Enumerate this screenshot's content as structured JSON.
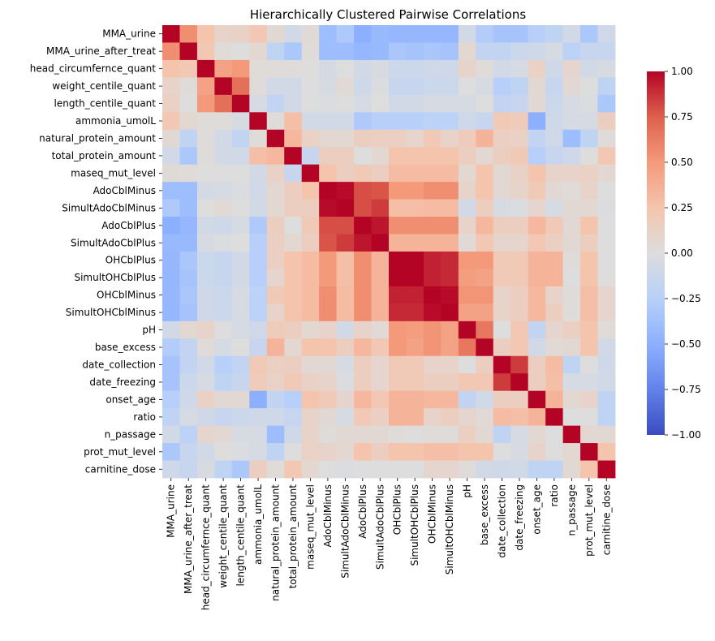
{
  "chart_data": {
    "type": "heatmap",
    "title": "Hierarchically Clustered Pairwise Correlations",
    "xlabel": "",
    "ylabel": "",
    "colormap": "coolwarm",
    "vmin": -1.0,
    "vmax": 1.0,
    "colorbar": {
      "placement": "right",
      "ticks": [
        1.0,
        0.75,
        0.5,
        0.25,
        0.0,
        -0.25,
        -0.5,
        -0.75,
        -1.0
      ],
      "tick_labels": [
        "1.00",
        "0.75",
        "0.50",
        "0.25",
        "0.00",
        "−0.25",
        "−0.50",
        "−0.75",
        "−1.00"
      ]
    },
    "labels": [
      "MMA_urine",
      "MMA_urine_after_treat",
      "head_circumfernce_quant",
      "weight_centile_quant",
      "length_centile_quant",
      "ammonia_umolL",
      "natural_protein_amount",
      "total_protein_amount",
      "maseq_mut_level",
      "AdoCblMinus",
      "SimultAdoCblMinus",
      "AdoCblPlus",
      "SimultAdoCblPlus",
      "OHCblPlus",
      "SimultOHCblPlus",
      "OHCblMinus",
      "SimultOHCblMinus",
      "pH",
      "base_excess",
      "date_collection",
      "date_freezing",
      "onset_age",
      "ratio",
      "n_passage",
      "prot_mut_level",
      "carnitine_dose"
    ],
    "matrix": [
      [
        1.0,
        0.55,
        0.25,
        0.1,
        0.12,
        0.22,
        0.05,
        -0.08,
        0.03,
        -0.4,
        -0.3,
        -0.5,
        -0.43,
        -0.45,
        -0.45,
        -0.45,
        -0.45,
        -0.08,
        -0.28,
        -0.35,
        -0.35,
        -0.25,
        -0.2,
        -0.08,
        -0.32,
        -0.1
      ],
      [
        0.55,
        1.0,
        0.22,
        0.02,
        0.0,
        0.06,
        -0.2,
        -0.32,
        0.02,
        -0.4,
        -0.4,
        -0.45,
        -0.43,
        -0.33,
        -0.35,
        -0.33,
        -0.35,
        0.06,
        -0.18,
        -0.18,
        -0.12,
        -0.1,
        -0.05,
        -0.22,
        -0.15,
        -0.15
      ],
      [
        0.25,
        0.22,
        1.0,
        0.45,
        0.5,
        0.02,
        0.02,
        0.02,
        0.0,
        -0.06,
        0.0,
        -0.08,
        -0.04,
        -0.12,
        -0.12,
        -0.1,
        -0.1,
        0.1,
        0.02,
        -0.08,
        -0.05,
        0.12,
        -0.1,
        0.08,
        -0.08,
        -0.04
      ],
      [
        0.1,
        0.02,
        0.45,
        1.0,
        0.68,
        0.02,
        -0.08,
        -0.08,
        0.0,
        -0.05,
        0.04,
        -0.1,
        -0.02,
        -0.15,
        -0.15,
        -0.12,
        -0.12,
        0.0,
        -0.05,
        -0.25,
        -0.2,
        0.05,
        -0.15,
        0.05,
        0.0,
        -0.2
      ],
      [
        0.12,
        0.0,
        0.5,
        0.68,
        1.0,
        -0.05,
        -0.18,
        -0.08,
        0.0,
        -0.02,
        0.0,
        -0.05,
        0.0,
        -0.08,
        -0.08,
        -0.05,
        -0.05,
        -0.05,
        0.0,
        -0.18,
        -0.15,
        0.05,
        -0.12,
        -0.05,
        -0.02,
        -0.32
      ],
      [
        0.22,
        0.06,
        0.02,
        0.02,
        -0.05,
        1.0,
        0.02,
        0.28,
        -0.08,
        -0.08,
        -0.08,
        -0.3,
        -0.25,
        -0.25,
        -0.25,
        -0.22,
        -0.22,
        -0.1,
        -0.15,
        0.2,
        0.18,
        -0.5,
        -0.1,
        -0.05,
        -0.05,
        0.15
      ],
      [
        0.05,
        -0.2,
        0.02,
        -0.08,
        -0.18,
        0.02,
        1.0,
        0.32,
        0.12,
        0.06,
        0.06,
        0.15,
        0.14,
        0.14,
        0.08,
        0.2,
        0.1,
        0.18,
        0.35,
        0.14,
        0.12,
        -0.18,
        -0.1,
        -0.4,
        -0.2,
        0.02
      ],
      [
        -0.08,
        -0.32,
        0.02,
        -0.08,
        -0.08,
        0.28,
        0.32,
        1.0,
        -0.15,
        0.15,
        0.15,
        0.0,
        0.06,
        0.25,
        0.25,
        0.25,
        0.25,
        0.15,
        0.06,
        0.15,
        0.2,
        -0.25,
        -0.15,
        -0.1,
        0.0,
        0.22
      ],
      [
        0.03,
        0.02,
        0.0,
        0.0,
        0.0,
        -0.08,
        0.12,
        -0.15,
        1.0,
        0.25,
        0.15,
        0.2,
        0.15,
        0.3,
        0.3,
        0.3,
        0.3,
        0.06,
        0.25,
        0.05,
        0.12,
        0.25,
        0.1,
        0.1,
        0.12,
        0.06
      ],
      [
        -0.4,
        -0.4,
        -0.06,
        -0.05,
        -0.02,
        -0.08,
        0.06,
        0.15,
        0.25,
        1.0,
        0.98,
        0.8,
        0.78,
        0.5,
        0.5,
        0.55,
        0.55,
        0.1,
        0.25,
        0.05,
        0.1,
        0.2,
        0.05,
        0.02,
        0.1,
        0.0
      ],
      [
        -0.3,
        -0.4,
        0.0,
        0.04,
        0.0,
        -0.08,
        0.06,
        0.15,
        0.15,
        0.98,
        1.0,
        0.8,
        0.85,
        0.28,
        0.28,
        0.3,
        0.3,
        -0.08,
        0.15,
        -0.05,
        -0.02,
        0.08,
        -0.05,
        0.05,
        0.06,
        -0.02
      ],
      [
        -0.5,
        -0.45,
        -0.08,
        -0.1,
        -0.05,
        -0.3,
        0.15,
        0.0,
        0.2,
        0.8,
        0.8,
        1.0,
        0.95,
        0.55,
        0.55,
        0.55,
        0.55,
        0.1,
        0.32,
        0.15,
        0.15,
        0.32,
        0.2,
        0.05,
        0.25,
        0.0
      ],
      [
        -0.43,
        -0.43,
        -0.04,
        -0.02,
        0.0,
        -0.25,
        0.14,
        0.06,
        0.15,
        0.78,
        0.85,
        0.95,
        1.0,
        0.35,
        0.35,
        0.35,
        0.35,
        0.04,
        0.22,
        0.08,
        0.08,
        0.22,
        0.14,
        0.05,
        0.15,
        0.0
      ],
      [
        -0.45,
        -0.33,
        -0.12,
        -0.15,
        -0.08,
        -0.25,
        0.14,
        0.25,
        0.3,
        0.5,
        0.28,
        0.55,
        0.35,
        1.0,
        1.0,
        0.92,
        0.9,
        0.5,
        0.5,
        0.2,
        0.2,
        0.35,
        0.35,
        0.02,
        0.25,
        0.0
      ],
      [
        -0.45,
        -0.35,
        -0.12,
        -0.15,
        -0.08,
        -0.25,
        0.08,
        0.25,
        0.3,
        0.5,
        0.28,
        0.55,
        0.35,
        1.0,
        1.0,
        0.92,
        0.9,
        0.48,
        0.45,
        0.2,
        0.2,
        0.35,
        0.35,
        0.0,
        0.25,
        0.0
      ],
      [
        -0.45,
        -0.33,
        -0.1,
        -0.12,
        -0.05,
        -0.22,
        0.2,
        0.25,
        0.3,
        0.55,
        0.3,
        0.55,
        0.35,
        0.92,
        0.92,
        1.0,
        0.98,
        0.52,
        0.52,
        0.1,
        0.15,
        0.32,
        0.1,
        0.02,
        0.28,
        0.08
      ],
      [
        -0.45,
        -0.35,
        -0.1,
        -0.12,
        -0.05,
        -0.22,
        0.1,
        0.25,
        0.3,
        0.55,
        0.3,
        0.55,
        0.35,
        0.9,
        0.9,
        0.98,
        1.0,
        0.45,
        0.45,
        0.1,
        0.15,
        0.32,
        0.15,
        0.02,
        0.28,
        0.08
      ],
      [
        -0.08,
        0.06,
        0.1,
        0.0,
        -0.05,
        -0.1,
        0.18,
        0.15,
        0.06,
        0.1,
        -0.08,
        0.1,
        0.04,
        0.5,
        0.48,
        0.52,
        0.45,
        1.0,
        0.65,
        0.0,
        0.22,
        -0.18,
        0.08,
        0.14,
        0.25,
        0.02
      ],
      [
        -0.28,
        -0.18,
        0.02,
        -0.05,
        0.0,
        -0.15,
        0.35,
        0.06,
        0.25,
        0.25,
        0.15,
        0.32,
        0.22,
        0.5,
        0.45,
        0.52,
        0.45,
        0.65,
        1.0,
        0.15,
        0.22,
        -0.08,
        0.04,
        0.05,
        0.25,
        -0.08
      ],
      [
        -0.35,
        -0.18,
        -0.08,
        -0.25,
        -0.18,
        0.2,
        0.14,
        0.15,
        0.05,
        0.05,
        -0.05,
        0.15,
        0.08,
        0.2,
        0.2,
        0.1,
        0.1,
        0.0,
        0.15,
        1.0,
        0.85,
        0.15,
        0.3,
        -0.2,
        0.0,
        -0.1
      ],
      [
        -0.35,
        -0.12,
        -0.05,
        -0.2,
        -0.15,
        0.18,
        0.12,
        0.2,
        0.12,
        0.1,
        -0.02,
        0.15,
        0.08,
        0.2,
        0.2,
        0.15,
        0.15,
        0.22,
        0.22,
        0.85,
        1.0,
        0.15,
        0.28,
        -0.05,
        -0.05,
        -0.08
      ],
      [
        -0.25,
        -0.1,
        0.12,
        0.05,
        0.05,
        -0.5,
        -0.18,
        -0.25,
        0.25,
        0.2,
        0.08,
        0.32,
        0.22,
        0.35,
        0.35,
        0.32,
        0.32,
        -0.18,
        -0.08,
        0.15,
        0.15,
        1.0,
        0.35,
        0.06,
        0.1,
        -0.2
      ],
      [
        -0.2,
        -0.05,
        -0.1,
        -0.15,
        -0.12,
        -0.1,
        -0.1,
        -0.15,
        0.1,
        0.05,
        -0.05,
        0.2,
        0.14,
        0.35,
        0.35,
        0.1,
        0.15,
        0.08,
        0.04,
        0.3,
        0.28,
        0.35,
        1.0,
        0.0,
        0.0,
        -0.2
      ],
      [
        -0.08,
        -0.22,
        0.08,
        0.05,
        -0.05,
        -0.05,
        -0.4,
        -0.1,
        0.1,
        0.02,
        0.05,
        0.05,
        0.05,
        0.02,
        0.0,
        0.02,
        0.02,
        0.14,
        0.05,
        -0.2,
        -0.05,
        0.06,
        0.0,
        1.0,
        0.06,
        0.05
      ],
      [
        -0.32,
        -0.15,
        -0.08,
        0.0,
        -0.02,
        -0.05,
        -0.2,
        0.0,
        0.12,
        0.1,
        0.06,
        0.25,
        0.15,
        0.25,
        0.25,
        0.28,
        0.28,
        0.25,
        0.25,
        0.0,
        -0.05,
        0.1,
        0.0,
        0.06,
        1.0,
        0.25
      ],
      [
        -0.1,
        -0.15,
        -0.04,
        -0.2,
        -0.32,
        0.15,
        0.02,
        0.22,
        0.06,
        0.0,
        -0.02,
        0.0,
        0.0,
        0.0,
        0.0,
        0.08,
        0.08,
        0.02,
        -0.08,
        -0.1,
        -0.08,
        -0.2,
        -0.2,
        0.05,
        0.25,
        1.0
      ]
    ]
  }
}
